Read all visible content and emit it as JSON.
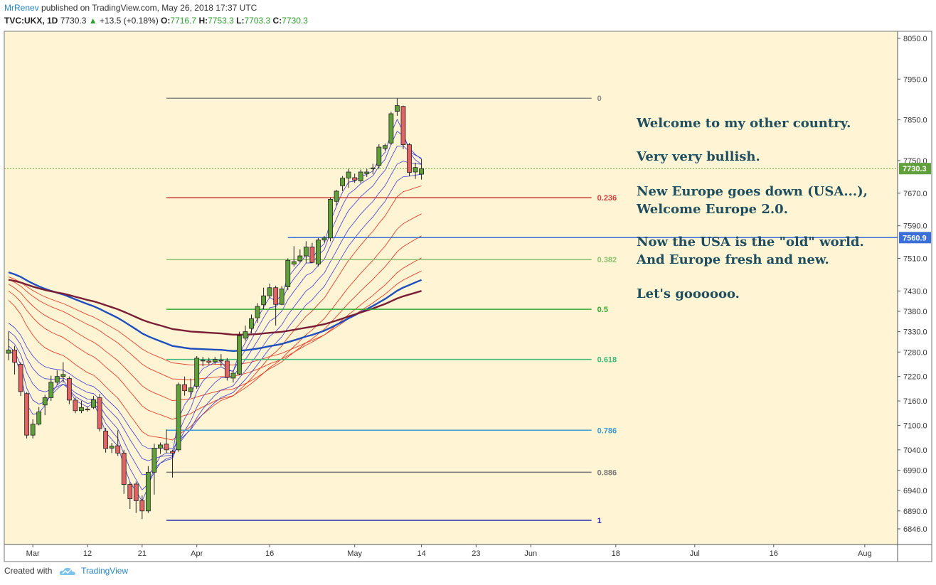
{
  "header": {
    "author": "MrRenev",
    "published": "published on TradingView.com, May 26, 2018 17:37 UTC",
    "symbol": "TVC:UKX, 1D",
    "last": "7730.3",
    "change": "+13.5 (+0.18%)",
    "o_label": "O:",
    "o": "7716.7",
    "h_label": "H:",
    "h": "7753.3",
    "l_label": "L:",
    "l": "7703.3",
    "c_label": "C:",
    "c": "7730.3"
  },
  "footer": {
    "created_with": "Created with",
    "brand": "TradingView"
  },
  "colors": {
    "background": "#fff4d4",
    "up": "#5fa03a",
    "down": "#e06464",
    "ma_blue": "#1f4fbf",
    "ma_maroon": "#7a1e36",
    "ema_red": "#e8422c",
    "ema_violet": "#3a3ad8"
  },
  "annotations": [
    "Welcome to my other country.",
    "Very very bullish.",
    "New Europe goes down (USA...),",
    "Welcome Europe 2.0.",
    "Now the USA is the \"old\" world.",
    "And Europe fresh and new.",
    "Let's goooooo."
  ],
  "chart_data": {
    "type": "candlestick",
    "ylim": [
      6830,
      8070
    ],
    "yticks": [
      8050,
      7950,
      7850,
      7750,
      7670,
      7590,
      7510,
      7430,
      7380,
      7330,
      7280,
      7220,
      7160,
      7100,
      7040,
      6990,
      6940,
      6890,
      6846
    ],
    "xticks": [
      {
        "label": "Mar",
        "i": 4
      },
      {
        "label": "12",
        "i": 13
      },
      {
        "label": "21",
        "i": 22
      },
      {
        "label": "Apr",
        "i": 31
      },
      {
        "label": "16",
        "i": 43
      },
      {
        "label": "May",
        "i": 57
      },
      {
        "label": "14",
        "i": 68
      },
      {
        "label": "23",
        "i": 77
      },
      {
        "label": "Jun",
        "i": 86
      },
      {
        "label": "18",
        "i": 100
      },
      {
        "label": "Jul",
        "i": 113
      },
      {
        "label": "16",
        "i": 126
      },
      {
        "label": "Aug",
        "i": 141
      }
    ],
    "x_range": [
      0,
      145
    ],
    "price_label": "7730.3",
    "level_label": "7560.9",
    "level_value": 7560.9,
    "fib": {
      "start_i": 26,
      "end_i": 96,
      "levels": [
        {
          "ratio": "0",
          "value": 7903,
          "color": "#888888"
        },
        {
          "ratio": "0.236",
          "value": 7659,
          "color": "#d23c3c"
        },
        {
          "ratio": "0.382",
          "value": 7507,
          "color": "#8cc070"
        },
        {
          "ratio": "0.5",
          "value": 7385,
          "color": "#2fa82f"
        },
        {
          "ratio": "0.618",
          "value": 7262,
          "color": "#3cb878"
        },
        {
          "ratio": "0.786",
          "value": 7088,
          "color": "#3d9bd2"
        },
        {
          "ratio": "0.886",
          "value": 6985,
          "color": "#777777"
        },
        {
          "ratio": "1",
          "value": 6867,
          "color": "#2b2bb0"
        }
      ]
    },
    "candles": [
      [
        0,
        7277,
        7285,
        7260,
        7330
      ],
      [
        1,
        7285,
        7255,
        7225,
        7295
      ],
      [
        2,
        7250,
        7183,
        7172,
        7255
      ],
      [
        3,
        7178,
        7076,
        7068,
        7182
      ],
      [
        4,
        7076,
        7103,
        7068,
        7115
      ],
      [
        5,
        7103,
        7133,
        7100,
        7145
      ],
      [
        6,
        7150,
        7168,
        7125,
        7175
      ],
      [
        7,
        7168,
        7206,
        7160,
        7222
      ],
      [
        8,
        7206,
        7220,
        7200,
        7235
      ],
      [
        9,
        7220,
        7225,
        7205,
        7255
      ],
      [
        10,
        7215,
        7162,
        7152,
        7220
      ],
      [
        11,
        7162,
        7136,
        7130,
        7168
      ],
      [
        12,
        7136,
        7144,
        7130,
        7160
      ],
      [
        13,
        7140,
        7138,
        7134,
        7146
      ],
      [
        14,
        7144,
        7163,
        7140,
        7172
      ],
      [
        15,
        7168,
        7092,
        7085,
        7177
      ],
      [
        16,
        7086,
        7043,
        7033,
        7094
      ],
      [
        17,
        7044,
        7049,
        7032,
        7057
      ],
      [
        18,
        7050,
        7032,
        7025,
        7088
      ],
      [
        19,
        7032,
        6955,
        6932,
        7040
      ],
      [
        20,
        6955,
        6920,
        6895,
        6960
      ],
      [
        21,
        6956,
        6915,
        6885,
        6962
      ],
      [
        22,
        6916,
        6890,
        6870,
        6928
      ],
      [
        23,
        6890,
        6985,
        6885,
        7000
      ],
      [
        24,
        6985,
        7044,
        6930,
        7055
      ],
      [
        25,
        7044,
        7052,
        7030,
        7058
      ],
      [
        26,
        7054,
        7040,
        7032,
        7090
      ],
      [
        27,
        7036,
        7032,
        6972,
        7040
      ],
      [
        28,
        7040,
        7200,
        7035,
        7205
      ],
      [
        29,
        7200,
        7185,
        7173,
        7220
      ],
      [
        30,
        7183,
        7192,
        7168,
        7215
      ],
      [
        31,
        7196,
        7265,
        7190,
        7270
      ],
      [
        32,
        7258,
        7260,
        7245,
        7268
      ],
      [
        33,
        7258,
        7255,
        7250,
        7266
      ],
      [
        34,
        7256,
        7262,
        7250,
        7268
      ],
      [
        35,
        7260,
        7258,
        7245,
        7275
      ],
      [
        36,
        7258,
        7218,
        7210,
        7265
      ],
      [
        37,
        7216,
        7228,
        7205,
        7235
      ],
      [
        38,
        7226,
        7320,
        7223,
        7330
      ],
      [
        39,
        7314,
        7330,
        7308,
        7345
      ],
      [
        40,
        7338,
        7362,
        7326,
        7372
      ],
      [
        41,
        7364,
        7392,
        7352,
        7400
      ],
      [
        42,
        7396,
        7418,
        7385,
        7438
      ],
      [
        43,
        7418,
        7438,
        7412,
        7448
      ],
      [
        44,
        7438,
        7397,
        7345,
        7443
      ],
      [
        45,
        7397,
        7435,
        7395,
        7442
      ],
      [
        46,
        7440,
        7505,
        7432,
        7510
      ],
      [
        47,
        7496,
        7502,
        7490,
        7540
      ],
      [
        48,
        7504,
        7516,
        7500,
        7532
      ],
      [
        49,
        7516,
        7538,
        7498,
        7552
      ],
      [
        50,
        7538,
        7500,
        7498,
        7548
      ],
      [
        51,
        7496,
        7555,
        7490,
        7560
      ],
      [
        52,
        7555,
        7560,
        7550,
        7565
      ],
      [
        53,
        7560,
        7655,
        7552,
        7660
      ],
      [
        54,
        7650,
        7675,
        7640,
        7678
      ],
      [
        55,
        7688,
        7707,
        7675,
        7712
      ],
      [
        56,
        7707,
        7722,
        7683,
        7730
      ],
      [
        57,
        7708,
        7702,
        7695,
        7718
      ],
      [
        58,
        7700,
        7722,
        7695,
        7728
      ],
      [
        59,
        7718,
        7722,
        7710,
        7730
      ],
      [
        60,
        7730,
        7732,
        7717,
        7742
      ],
      [
        61,
        7738,
        7783,
        7730,
        7790
      ],
      [
        62,
        7780,
        7787,
        7775,
        7792
      ],
      [
        63,
        7793,
        7865,
        7788,
        7870
      ],
      [
        64,
        7871,
        7885,
        7860,
        7903
      ],
      [
        65,
        7883,
        7789,
        7778,
        7885
      ],
      [
        66,
        7789,
        7721,
        7712,
        7793
      ],
      [
        67,
        7722,
        7733,
        7705,
        7745
      ],
      [
        68,
        7716.7,
        7730.3,
        7703.3,
        7753.3
      ]
    ]
  }
}
